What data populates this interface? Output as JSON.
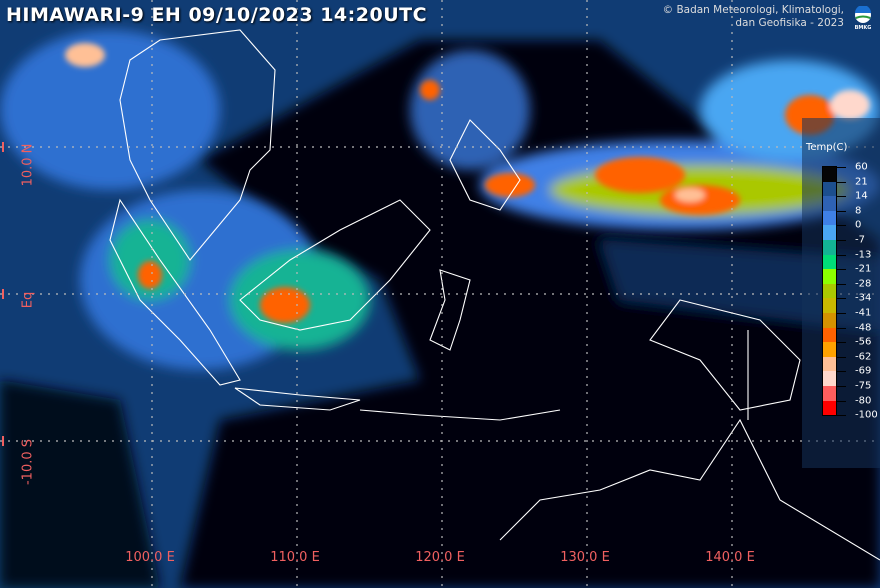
{
  "header": {
    "title": "HIMAWARI-9 EH  09/10/2023 14:20UTC",
    "credit_line1": "© Badan Meteorologi, Klimatologi,",
    "credit_line2": "dan Geofisika -  2023",
    "logo_text": "BMKG"
  },
  "grid": {
    "longitude_labels": [
      "100.0 E",
      "110.0 E",
      "120.0 E",
      "130.0 E",
      "140.0 E"
    ],
    "latitude_labels": [
      "10.0 N",
      "Eq",
      "-10.0 S"
    ]
  },
  "legend": {
    "title": "Temp(C)",
    "values": [
      "60",
      "21",
      "14",
      "8",
      "0",
      "-7",
      "-13",
      "-21",
      "-28",
      "-34",
      "-41",
      "-48",
      "-56",
      "-62",
      "-69",
      "-75",
      "-80",
      "-100"
    ],
    "colors": [
      "#050505",
      "#1c4f8e",
      "#2e62b4",
      "#3f80e6",
      "#4aa6f2",
      "#13b394",
      "#00dc78",
      "#8cff00",
      "#aac800",
      "#c8b800",
      "#d49200",
      "#ff6200",
      "#ffa200",
      "#ffc096",
      "#ffd8cc",
      "#ff5e5e",
      "#ff0000"
    ]
  }
}
